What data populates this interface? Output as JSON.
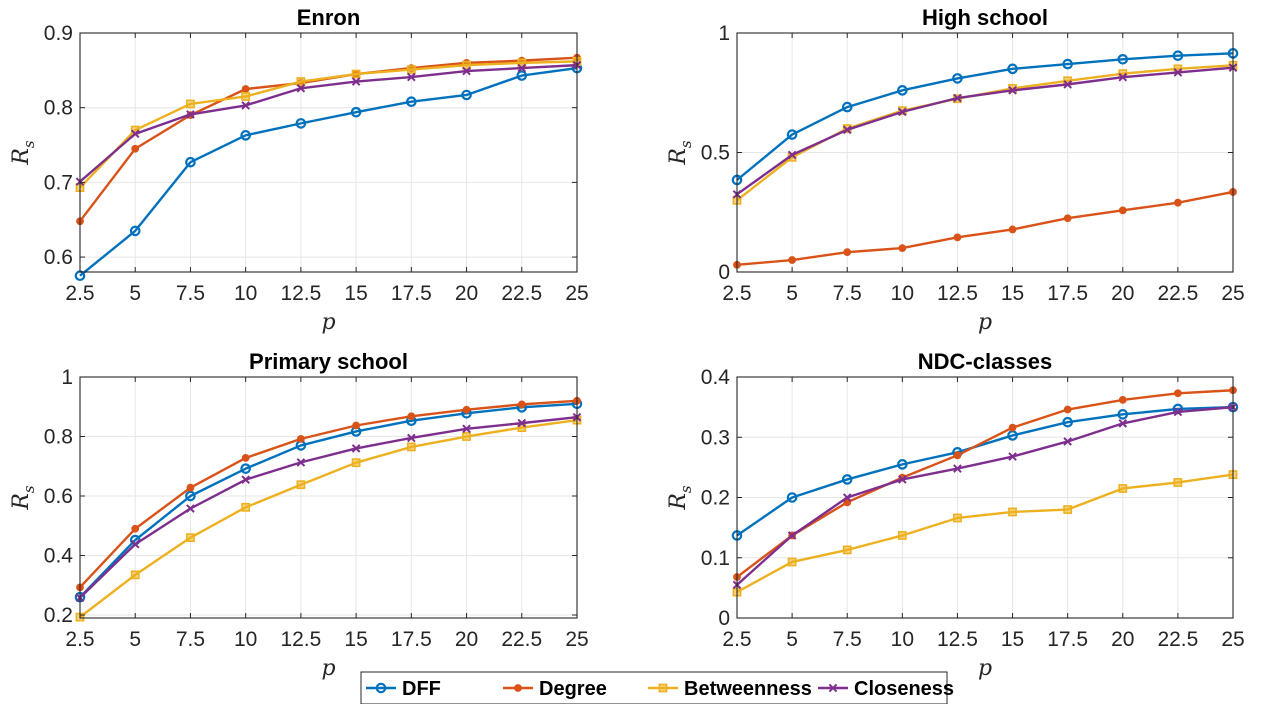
{
  "legend": {
    "placement": "bottom-center",
    "entries": [
      {
        "name": "DFF",
        "color": "#0072BD",
        "marker": "circle"
      },
      {
        "name": "Degree",
        "color": "#D95319",
        "marker": "dot"
      },
      {
        "name": "Betweenness",
        "color": "#EDB120",
        "marker": "square"
      },
      {
        "name": "Closeness",
        "color": "#7E2F8E",
        "marker": "x"
      }
    ]
  },
  "chart_data": [
    {
      "type": "line",
      "title": "Enron",
      "xlabel": "p",
      "ylabel": "R",
      "ylabel_sub": "s",
      "x": [
        2.5,
        5,
        7.5,
        10,
        12.5,
        15,
        17.5,
        20,
        22.5,
        25
      ],
      "x_tick_labels": [
        "2.5",
        "5",
        "7.5",
        "10",
        "12.5",
        "15",
        "17.5",
        "20",
        "22.5",
        "25"
      ],
      "xlim": [
        2.5,
        25
      ],
      "ylim": [
        0.58,
        0.9
      ],
      "y_ticks": [
        0.6,
        0.7,
        0.8,
        0.9
      ],
      "y_tick_labels": [
        "0.6",
        "0.7",
        "0.8",
        "0.9"
      ],
      "grid": true,
      "series": [
        {
          "name": "DFF",
          "values": [
            0.575,
            0.635,
            0.727,
            0.763,
            0.779,
            0.794,
            0.808,
            0.817,
            0.843,
            0.853
          ]
        },
        {
          "name": "Degree",
          "values": [
            0.648,
            0.745,
            0.79,
            0.825,
            0.833,
            0.845,
            0.853,
            0.86,
            0.863,
            0.867
          ]
        },
        {
          "name": "Betweenness",
          "values": [
            0.693,
            0.77,
            0.805,
            0.815,
            0.835,
            0.845,
            0.851,
            0.857,
            0.86,
            0.862
          ]
        },
        {
          "name": "Closeness",
          "values": [
            0.701,
            0.765,
            0.791,
            0.803,
            0.826,
            0.835,
            0.841,
            0.849,
            0.853,
            0.857
          ]
        }
      ]
    },
    {
      "type": "line",
      "title": "High school",
      "xlabel": "p",
      "ylabel": "R",
      "ylabel_sub": "s",
      "x": [
        2.5,
        5,
        7.5,
        10,
        12.5,
        15,
        17.5,
        20,
        22.5,
        25
      ],
      "x_tick_labels": [
        "2.5",
        "5",
        "7.5",
        "10",
        "12.5",
        "15",
        "17.5",
        "20",
        "22.5",
        "25"
      ],
      "xlim": [
        2.5,
        25
      ],
      "ylim": [
        0,
        1
      ],
      "y_ticks": [
        0,
        0.5,
        1
      ],
      "y_tick_labels": [
        "0",
        "0.5",
        "1"
      ],
      "grid": true,
      "series": [
        {
          "name": "DFF",
          "values": [
            0.385,
            0.575,
            0.69,
            0.76,
            0.81,
            0.85,
            0.87,
            0.89,
            0.905,
            0.915
          ]
        },
        {
          "name": "Degree",
          "values": [
            0.03,
            0.05,
            0.083,
            0.1,
            0.145,
            0.178,
            0.225,
            0.258,
            0.29,
            0.335
          ]
        },
        {
          "name": "Betweenness",
          "values": [
            0.3,
            0.48,
            0.6,
            0.675,
            0.725,
            0.768,
            0.8,
            0.83,
            0.85,
            0.865
          ]
        },
        {
          "name": "Closeness",
          "values": [
            0.325,
            0.49,
            0.595,
            0.67,
            0.728,
            0.76,
            0.785,
            0.815,
            0.835,
            0.855
          ]
        }
      ]
    },
    {
      "type": "line",
      "title": "Primary school",
      "xlabel": "p",
      "ylabel": "R",
      "ylabel_sub": "s",
      "x": [
        2.5,
        5,
        7.5,
        10,
        12.5,
        15,
        17.5,
        20,
        22.5,
        25
      ],
      "x_tick_labels": [
        "2.5",
        "5",
        "7.5",
        "10",
        "12.5",
        "15",
        "17.5",
        "20",
        "22.5",
        "25"
      ],
      "xlim": [
        2.5,
        25
      ],
      "ylim": [
        0.19,
        1
      ],
      "y_ticks": [
        0.2,
        0.4,
        0.6,
        0.8,
        1
      ],
      "y_tick_labels": [
        "0.2",
        "0.4",
        "0.6",
        "0.8",
        "1"
      ],
      "grid": true,
      "series": [
        {
          "name": "DFF",
          "values": [
            0.26,
            0.452,
            0.6,
            0.692,
            0.77,
            0.817,
            0.853,
            0.878,
            0.898,
            0.91
          ]
        },
        {
          "name": "Degree",
          "values": [
            0.293,
            0.49,
            0.628,
            0.728,
            0.792,
            0.837,
            0.868,
            0.89,
            0.908,
            0.92
          ]
        },
        {
          "name": "Betweenness",
          "values": [
            0.193,
            0.335,
            0.46,
            0.562,
            0.638,
            0.712,
            0.765,
            0.8,
            0.83,
            0.855
          ]
        },
        {
          "name": "Closeness",
          "values": [
            0.258,
            0.438,
            0.558,
            0.655,
            0.713,
            0.76,
            0.795,
            0.826,
            0.845,
            0.865
          ]
        }
      ]
    },
    {
      "type": "line",
      "title": "NDC-classes",
      "xlabel": "p",
      "ylabel": "R",
      "ylabel_sub": "s",
      "x": [
        2.5,
        5,
        7.5,
        10,
        12.5,
        15,
        17.5,
        20,
        22.5,
        25
      ],
      "x_tick_labels": [
        "2.5",
        "5",
        "7.5",
        "10",
        "12.5",
        "15",
        "17.5",
        "20",
        "22.5",
        "25"
      ],
      "xlim": [
        2.5,
        25
      ],
      "ylim": [
        0,
        0.4
      ],
      "y_ticks": [
        0,
        0.1,
        0.2,
        0.3,
        0.4
      ],
      "y_tick_labels": [
        "0",
        "0.1",
        "0.2",
        "0.3",
        "0.4"
      ],
      "grid": true,
      "series": [
        {
          "name": "DFF",
          "values": [
            0.137,
            0.2,
            0.23,
            0.255,
            0.275,
            0.303,
            0.325,
            0.338,
            0.347,
            0.35
          ]
        },
        {
          "name": "Degree",
          "values": [
            0.068,
            0.137,
            0.192,
            0.233,
            0.27,
            0.316,
            0.346,
            0.362,
            0.373,
            0.378
          ]
        },
        {
          "name": "Betweenness",
          "values": [
            0.043,
            0.093,
            0.113,
            0.137,
            0.166,
            0.176,
            0.18,
            0.215,
            0.225,
            0.238
          ]
        },
        {
          "name": "Closeness",
          "values": [
            0.055,
            0.137,
            0.2,
            0.23,
            0.248,
            0.268,
            0.293,
            0.323,
            0.342,
            0.35
          ]
        }
      ]
    }
  ]
}
